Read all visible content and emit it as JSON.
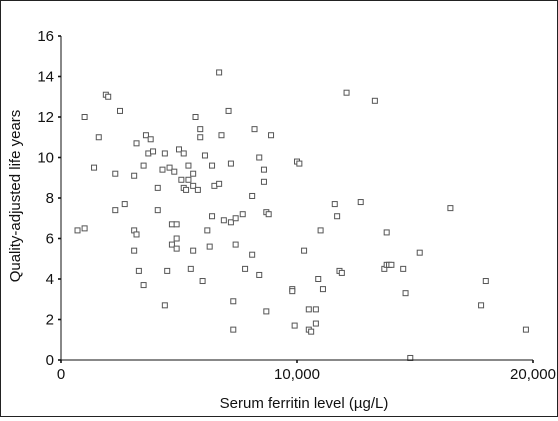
{
  "chart_data": {
    "type": "scatter",
    "title": "",
    "xlabel": "Serum ferritin level (µg/L)",
    "ylabel": "Quality-adjusted life years",
    "xlim": [
      0,
      20000
    ],
    "ylim": [
      0,
      16
    ],
    "x_ticks": [
      0,
      10000,
      20000
    ],
    "x_tick_labels": [
      "0",
      "10,000",
      "20,000"
    ],
    "y_ticks": [
      0,
      2,
      4,
      6,
      8,
      10,
      12,
      14,
      16
    ],
    "y_tick_labels": [
      "0",
      "2",
      "4",
      "6",
      "8",
      "10",
      "12",
      "14",
      "16"
    ],
    "grid": false,
    "marker": "open-square",
    "colors": {
      "marker_stroke": "#555555",
      "axis": "#111111"
    },
    "series": [
      {
        "points": [
          [
            700,
            6.4
          ],
          [
            1000,
            12
          ],
          [
            1000,
            6.5
          ],
          [
            1400,
            9.5
          ],
          [
            1600,
            11
          ],
          [
            1900,
            13.1
          ],
          [
            2000,
            13
          ],
          [
            2300,
            9.2
          ],
          [
            2300,
            7.4
          ],
          [
            2500,
            12.3
          ],
          [
            2700,
            7.7
          ],
          [
            3100,
            9.1
          ],
          [
            3100,
            6.4
          ],
          [
            3100,
            5.4
          ],
          [
            3200,
            6.2
          ],
          [
            3200,
            10.7
          ],
          [
            3300,
            4.4
          ],
          [
            3500,
            3.7
          ],
          [
            3500,
            9.6
          ],
          [
            3600,
            11.1
          ],
          [
            3700,
            10.2
          ],
          [
            3800,
            10.9
          ],
          [
            3900,
            10.3
          ],
          [
            4100,
            8.5
          ],
          [
            4100,
            7.4
          ],
          [
            4300,
            9.4
          ],
          [
            4400,
            10.2
          ],
          [
            4400,
            2.7
          ],
          [
            4500,
            4.4
          ],
          [
            4600,
            9.5
          ],
          [
            4700,
            6.7
          ],
          [
            4700,
            5.7
          ],
          [
            4800,
            9.3
          ],
          [
            4900,
            6.7
          ],
          [
            4900,
            6
          ],
          [
            4900,
            5.5
          ],
          [
            5000,
            10.4
          ],
          [
            5100,
            8.9
          ],
          [
            5200,
            10.2
          ],
          [
            5200,
            8.5
          ],
          [
            5300,
            8.4
          ],
          [
            5400,
            9.6
          ],
          [
            5400,
            8.9
          ],
          [
            5500,
            4.5
          ],
          [
            5600,
            9.2
          ],
          [
            5600,
            8.6
          ],
          [
            5600,
            5.4
          ],
          [
            5700,
            12
          ],
          [
            5800,
            8.4
          ],
          [
            5900,
            11.4
          ],
          [
            5900,
            11
          ],
          [
            6000,
            3.9
          ],
          [
            6100,
            10.1
          ],
          [
            6200,
            6.4
          ],
          [
            6300,
            5.6
          ],
          [
            6400,
            9.6
          ],
          [
            6400,
            7.1
          ],
          [
            6500,
            8.6
          ],
          [
            6700,
            14.2
          ],
          [
            6700,
            8.7
          ],
          [
            6800,
            11.1
          ],
          [
            6900,
            6.9
          ],
          [
            7100,
            12.3
          ],
          [
            7200,
            9.7
          ],
          [
            7200,
            6.8
          ],
          [
            7300,
            2.9
          ],
          [
            7300,
            1.5
          ],
          [
            7400,
            7
          ],
          [
            7400,
            5.7
          ],
          [
            7700,
            7.2
          ],
          [
            7800,
            4.5
          ],
          [
            8100,
            5.2
          ],
          [
            8100,
            8.1
          ],
          [
            8200,
            11.4
          ],
          [
            8400,
            10
          ],
          [
            8400,
            4.2
          ],
          [
            8600,
            9.4
          ],
          [
            8600,
            8.8
          ],
          [
            8700,
            2.4
          ],
          [
            8700,
            7.3
          ],
          [
            8800,
            7.2
          ],
          [
            8900,
            11.1
          ],
          [
            9800,
            3.5
          ],
          [
            9800,
            3.4
          ],
          [
            9900,
            1.7
          ],
          [
            10000,
            9.8
          ],
          [
            10100,
            9.7
          ],
          [
            10300,
            5.4
          ],
          [
            10500,
            2.5
          ],
          [
            10500,
            1.5
          ],
          [
            10600,
            1.4
          ],
          [
            10800,
            1.8
          ],
          [
            10800,
            2.5
          ],
          [
            10900,
            4
          ],
          [
            11000,
            6.4
          ],
          [
            11100,
            3.5
          ],
          [
            11600,
            7.7
          ],
          [
            11700,
            7.1
          ],
          [
            11800,
            4.4
          ],
          [
            11900,
            4.3
          ],
          [
            12100,
            13.2
          ],
          [
            12700,
            7.8
          ],
          [
            13300,
            12.8
          ],
          [
            13700,
            4.5
          ],
          [
            13800,
            6.3
          ],
          [
            13800,
            4.7
          ],
          [
            13900,
            4.7
          ],
          [
            14000,
            4.7
          ],
          [
            14500,
            4.5
          ],
          [
            14600,
            3.3
          ],
          [
            14800,
            0.1
          ],
          [
            15200,
            5.3
          ],
          [
            16500,
            7.5
          ],
          [
            17800,
            2.7
          ],
          [
            18000,
            3.9
          ],
          [
            19700,
            1.5
          ]
        ]
      }
    ]
  }
}
